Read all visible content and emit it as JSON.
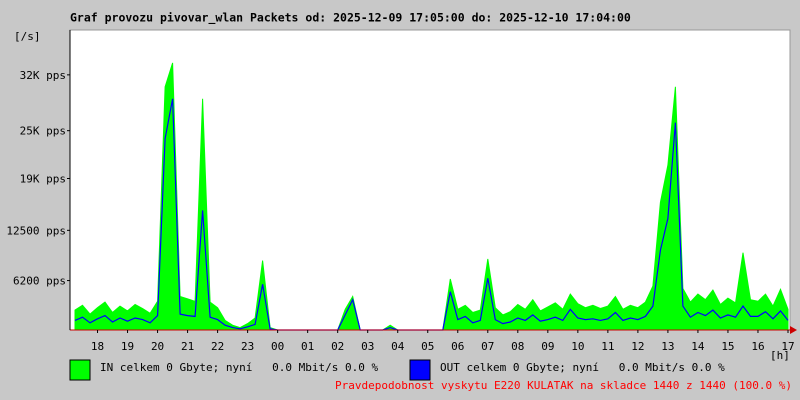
{
  "chart_data": {
    "type": "area",
    "title": "Graf provozu pivovar_wlan Packets od: 2025-12-09 17:05:00 do: 2025-12-10 17:04:00",
    "y_label": "[/s]",
    "x_label": "[h]",
    "footnote": "Pravdepodobnost vyskytu E220 KULATAK na skladce 1440 z 1440 (100.0 %)",
    "xlim": [
      17.083,
      41.067
    ],
    "xticks": [
      18,
      19,
      20,
      21,
      22,
      23,
      {
        "value": 24,
        "label": "00"
      },
      {
        "value": 25,
        "label": "01"
      },
      {
        "value": 26,
        "label": "02"
      },
      {
        "value": 27,
        "label": "03"
      },
      {
        "value": 28,
        "label": "04"
      },
      {
        "value": 29,
        "label": "05"
      },
      {
        "value": 30,
        "label": "06"
      },
      {
        "value": 31,
        "label": "07"
      },
      {
        "value": 32,
        "label": "08"
      },
      {
        "value": 33,
        "label": "09"
      },
      {
        "value": 34,
        "label": "10"
      },
      {
        "value": 35,
        "label": "11"
      },
      {
        "value": 36,
        "label": "12"
      },
      {
        "value": 37,
        "label": "13"
      },
      {
        "value": 38,
        "label": "14"
      },
      {
        "value": 39,
        "label": "15"
      },
      {
        "value": 40,
        "label": "16"
      },
      {
        "value": 41,
        "label": "17"
      }
    ],
    "ylim": [
      0,
      37500
    ],
    "yticks": [
      {
        "value": 6200,
        "label": "6200 pps"
      },
      {
        "value": 12500,
        "label": "12500 pps"
      },
      {
        "value": 19000,
        "label": "19K pps"
      },
      {
        "value": 25000,
        "label": "25K pps"
      },
      {
        "value": 32000,
        "label": "32K pps"
      }
    ],
    "x": [
      17.25,
      17.5,
      17.75,
      18,
      18.25,
      18.5,
      18.75,
      19,
      19.25,
      19.5,
      19.75,
      20,
      20.25,
      20.5,
      20.75,
      21,
      21.25,
      21.5,
      21.75,
      22,
      22.25,
      22.5,
      22.75,
      23,
      23.25,
      23.5,
      23.75,
      24,
      24.25,
      24.5,
      24.75,
      25,
      25.25,
      25.5,
      25.75,
      26,
      26.25,
      26.5,
      26.75,
      27,
      27.25,
      27.5,
      27.75,
      28,
      28.25,
      28.5,
      28.75,
      29,
      29.25,
      29.5,
      29.75,
      30,
      30.25,
      30.5,
      30.75,
      31,
      31.25,
      31.5,
      31.75,
      32,
      32.25,
      32.5,
      32.75,
      33,
      33.25,
      33.5,
      33.75,
      34,
      34.25,
      34.5,
      34.75,
      35,
      35.25,
      35.5,
      35.75,
      36,
      36.25,
      36.5,
      36.75,
      37,
      37.25,
      37.5,
      37.75,
      38,
      38.25,
      38.5,
      38.75,
      39,
      39.25,
      39.5,
      39.75,
      40,
      40.25,
      40.5,
      40.75,
      41
    ],
    "series": [
      {
        "name": "IN celkem 0 Gbyte; nyní   0.0 Mbit/s 0.0 %",
        "color": "#00ff00",
        "fill": true,
        "values": [
          2500,
          3100,
          2000,
          2800,
          3500,
          2200,
          3000,
          2400,
          3200,
          2700,
          2100,
          3600,
          30500,
          33500,
          4200,
          3900,
          3600,
          29000,
          3500,
          2800,
          1200,
          600,
          300,
          800,
          1500,
          8700,
          300,
          0,
          0,
          0,
          0,
          0,
          0,
          0,
          0,
          0,
          2600,
          4200,
          0,
          0,
          0,
          0,
          600,
          0,
          0,
          0,
          0,
          0,
          0,
          0,
          6400,
          2600,
          3100,
          2200,
          2500,
          8900,
          2800,
          1900,
          2300,
          3200,
          2600,
          3800,
          2400,
          2900,
          3400,
          2600,
          4500,
          3300,
          2800,
          3100,
          2700,
          3000,
          4200,
          2600,
          3100,
          2800,
          3500,
          5500,
          16000,
          20700,
          30500,
          5200,
          3500,
          4500,
          3800,
          5000,
          3200,
          4000,
          3400,
          9700,
          3800,
          3600,
          4500,
          3000,
          5100,
          2600
        ]
      },
      {
        "name": "OUT celkem 0 Gbyte; nyní   0.0 Mbit/s 0.0 %",
        "color": "#0000ff",
        "fill": false,
        "values": [
          1200,
          1600,
          900,
          1400,
          1800,
          1000,
          1500,
          1100,
          1500,
          1300,
          900,
          1800,
          24000,
          29000,
          2000,
          1800,
          1700,
          15000,
          1600,
          1300,
          600,
          300,
          150,
          400,
          700,
          5750,
          150,
          0,
          0,
          0,
          0,
          0,
          0,
          0,
          0,
          0,
          1900,
          3800,
          0,
          0,
          0,
          0,
          300,
          0,
          0,
          0,
          0,
          0,
          0,
          0,
          4800,
          1300,
          1700,
          900,
          1200,
          6500,
          1300,
          800,
          1000,
          1500,
          1200,
          1900,
          1100,
          1300,
          1600,
          1200,
          2600,
          1500,
          1300,
          1400,
          1200,
          1400,
          2200,
          1200,
          1500,
          1300,
          1700,
          3000,
          10000,
          14000,
          26000,
          3000,
          1600,
          2200,
          1800,
          2500,
          1500,
          1900,
          1600,
          3000,
          1700,
          1700,
          2300,
          1400,
          2400,
          1200
        ]
      }
    ]
  }
}
